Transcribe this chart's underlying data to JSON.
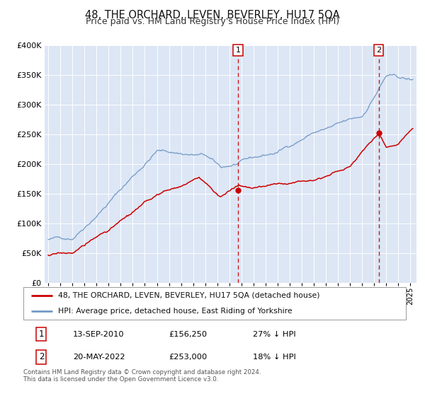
{
  "title": "48, THE ORCHARD, LEVEN, BEVERLEY, HU17 5QA",
  "subtitle": "Price paid vs. HM Land Registry's House Price Index (HPI)",
  "ylim": [
    0,
    400000
  ],
  "xlim_start": 1994.7,
  "xlim_end": 2025.5,
  "background_color": "#ffffff",
  "plot_bg_color": "#dce6f5",
  "grid_color": "#ffffff",
  "sale1_date": 2010.71,
  "sale1_price": 156250,
  "sale2_date": 2022.38,
  "sale2_price": 253000,
  "red_line_color": "#cc0000",
  "blue_line_color": "#7399c6",
  "marker_color": "#cc0000",
  "dashed_line_color": "#cc0000",
  "legend_label_red": "48, THE ORCHARD, LEVEN, BEVERLEY, HU17 5QA (detached house)",
  "legend_label_blue": "HPI: Average price, detached house, East Riding of Yorkshire",
  "table_row1": [
    "1",
    "13-SEP-2010",
    "£156,250",
    "27% ↓ HPI"
  ],
  "table_row2": [
    "2",
    "20-MAY-2022",
    "£253,000",
    "18% ↓ HPI"
  ],
  "footnote1": "Contains HM Land Registry data © Crown copyright and database right 2024.",
  "footnote2": "This data is licensed under the Open Government Licence v3.0.",
  "title_fontsize": 10.5,
  "subtitle_fontsize": 9
}
